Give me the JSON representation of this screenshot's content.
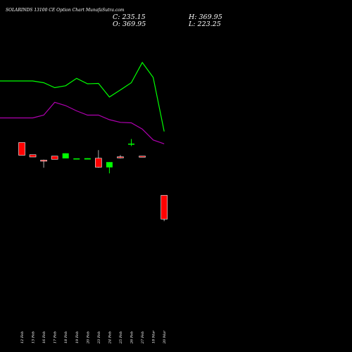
{
  "header": {
    "title": "SOLARINDS 13100  CE Option  Chart MunafaSutra.com",
    "close_text": "C: 235.15",
    "open_text": "O: 369.95",
    "high_text": "H: 369.95",
    "low_text": "L: 223.25"
  },
  "colors": {
    "background": "#000000",
    "bull": "#00ff00",
    "bear": "#ff0000",
    "upper_line": "#00ff00",
    "lower_line": "#b000b0",
    "text": "#ffffff"
  },
  "chart_data": {
    "type": "candlestick",
    "x_tick_labels": [
      "12 Feb",
      "13 Feb",
      "16 Feb",
      "17 Feb",
      "18 Feb",
      "19 Feb",
      "20 Feb",
      "23 Feb",
      "24 Feb",
      "25 Feb",
      "26 Feb",
      "27 Feb",
      "18 Mar",
      "20 Mar"
    ],
    "candles": [
      {
        "open": 670,
        "high": 670,
        "low": 598,
        "close": 598
      },
      {
        "open": 601,
        "high": 601,
        "low": 588,
        "close": 588
      },
      {
        "open": 570,
        "high": 573,
        "low": 527,
        "close": 566
      },
      {
        "open": 593,
        "high": 593,
        "low": 575,
        "close": 575
      },
      {
        "open": 580,
        "high": 609,
        "low": 580,
        "close": 609
      },
      {
        "open": 578,
        "high": 580,
        "low": 578,
        "close": 580
      },
      {
        "open": 574,
        "high": 581,
        "low": 574,
        "close": 581
      },
      {
        "open": 581,
        "high": 627,
        "low": 527,
        "close": 530
      },
      {
        "open": 529,
        "high": 559,
        "low": 495,
        "close": 559
      },
      {
        "open": 589,
        "high": 599,
        "low": 580,
        "close": 583
      },
      {
        "open": 658,
        "high": 690,
        "low": 650,
        "close": 664
      },
      {
        "open": 593,
        "high": 593,
        "low": 590,
        "close": 590
      },
      null,
      {
        "open": 369.95,
        "high": 369.95,
        "low": 223.25,
        "close": 235.15
      }
    ],
    "upper_band": [
      1020,
      1020,
      1010,
      982,
      993,
      1035,
      1004,
      1006,
      929,
      969,
      1010,
      1125,
      1040,
      733
    ],
    "lower_band": [
      810,
      810,
      826,
      899,
      880,
      850,
      826,
      826,
      800,
      785,
      782,
      747,
      685,
      663
    ],
    "grid": false,
    "legend": "none"
  }
}
